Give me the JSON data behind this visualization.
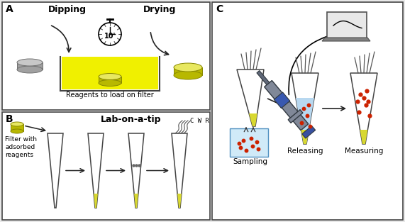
{
  "bg_color": "#e8e8e8",
  "panel_bg": "#ffffff",
  "border_color": "#444444",
  "label_A": "A",
  "label_B": "B",
  "label_C": "C",
  "text_dipping": "Dipping",
  "text_drying": "Drying",
  "text_reagents": "Reagents to load on filter",
  "text_10min": "10'",
  "text_lab": "Lab-on-a-tip",
  "text_filter": "Filter with\nadsorbed\nreagents",
  "text_cwr": "C W R",
  "text_sampling": "Sampling",
  "text_releasing": "Releasing",
  "text_measuring": "Measuring",
  "yellow_color": "#b8b800",
  "yellow_fill": "#d8d830",
  "yellow_light": "#e8e860",
  "yellow_dark": "#888800",
  "gray_color": "#a0a0a0",
  "gray_light": "#c8c8c8",
  "gray_dark": "#707070",
  "blue_fill": "#b8d8f0",
  "blue_light": "#d0eaf8",
  "red_dot": "#cc2200",
  "device_gray": "#808898",
  "device_mid": "#606878",
  "device_dark": "#303840",
  "device_blue": "#3850a0",
  "laptop_gray": "#505050",
  "laptop_screen": "#e8e8e8",
  "arrow_color": "#222222"
}
